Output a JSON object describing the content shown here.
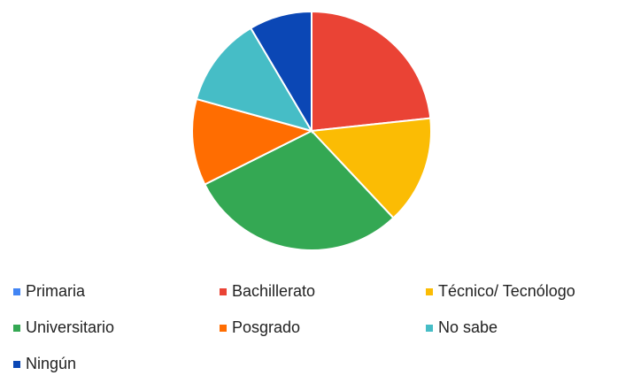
{
  "chart_data": {
    "type": "pie",
    "categories": [
      "Primaria",
      "Bachillerato",
      "Técnico/ Tecnólogo",
      "Universitario",
      "Posgrado",
      "No sabe",
      "Ningún"
    ],
    "values": [
      0,
      23.3,
      14.7,
      29.6,
      11.7,
      12.2,
      8.5
    ],
    "colors": [
      "#4285f4",
      "#ea4335",
      "#fbbc04",
      "#34a853",
      "#ff6d01",
      "#46bdc6",
      "#0b47b5"
    ],
    "legend": "bottom"
  }
}
